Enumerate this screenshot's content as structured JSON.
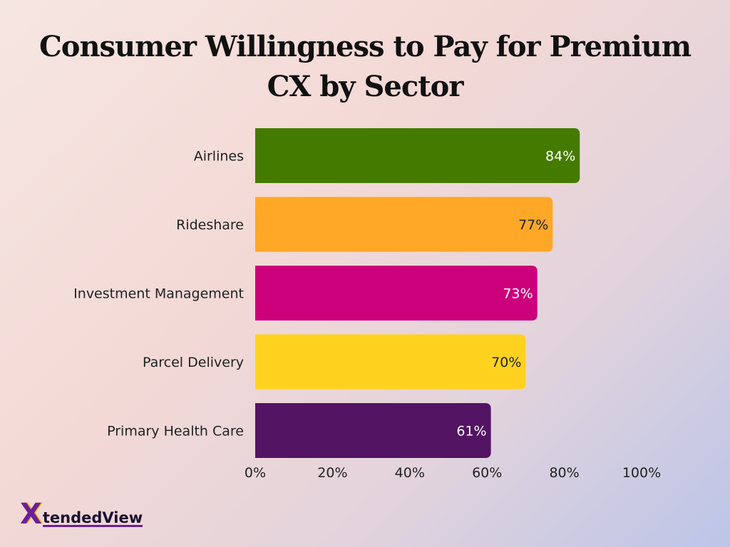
{
  "title": {
    "line1": "Consumer Willingness to Pay for Premium",
    "line2": "CX by Sector"
  },
  "logo": {
    "initial": "X",
    "text": "tendedView"
  },
  "chart_data": {
    "type": "bar",
    "orientation": "horizontal",
    "title": "Consumer Willingness to Pay for Premium CX by Sector",
    "categories": [
      "Airlines",
      "Rideshare",
      "Investment Management",
      "Parcel Delivery",
      "Primary Health Care"
    ],
    "values": [
      84,
      77,
      73,
      70,
      61
    ],
    "value_labels": [
      "84%",
      "77%",
      "73%",
      "70%",
      "61%"
    ],
    "colors": [
      "#447a00",
      "#ffa726",
      "#cc007a",
      "#ffd21f",
      "#531463"
    ],
    "label_colors": [
      "#ffffff",
      "#222222",
      "#ffffff",
      "#222222",
      "#ffffff"
    ],
    "x_ticks": [
      "0%",
      "20%",
      "40%",
      "60%",
      "80%",
      "100%"
    ],
    "xlim": [
      0,
      100
    ],
    "xlabel": "",
    "ylabel": "",
    "grid": false,
    "legend": "none"
  }
}
